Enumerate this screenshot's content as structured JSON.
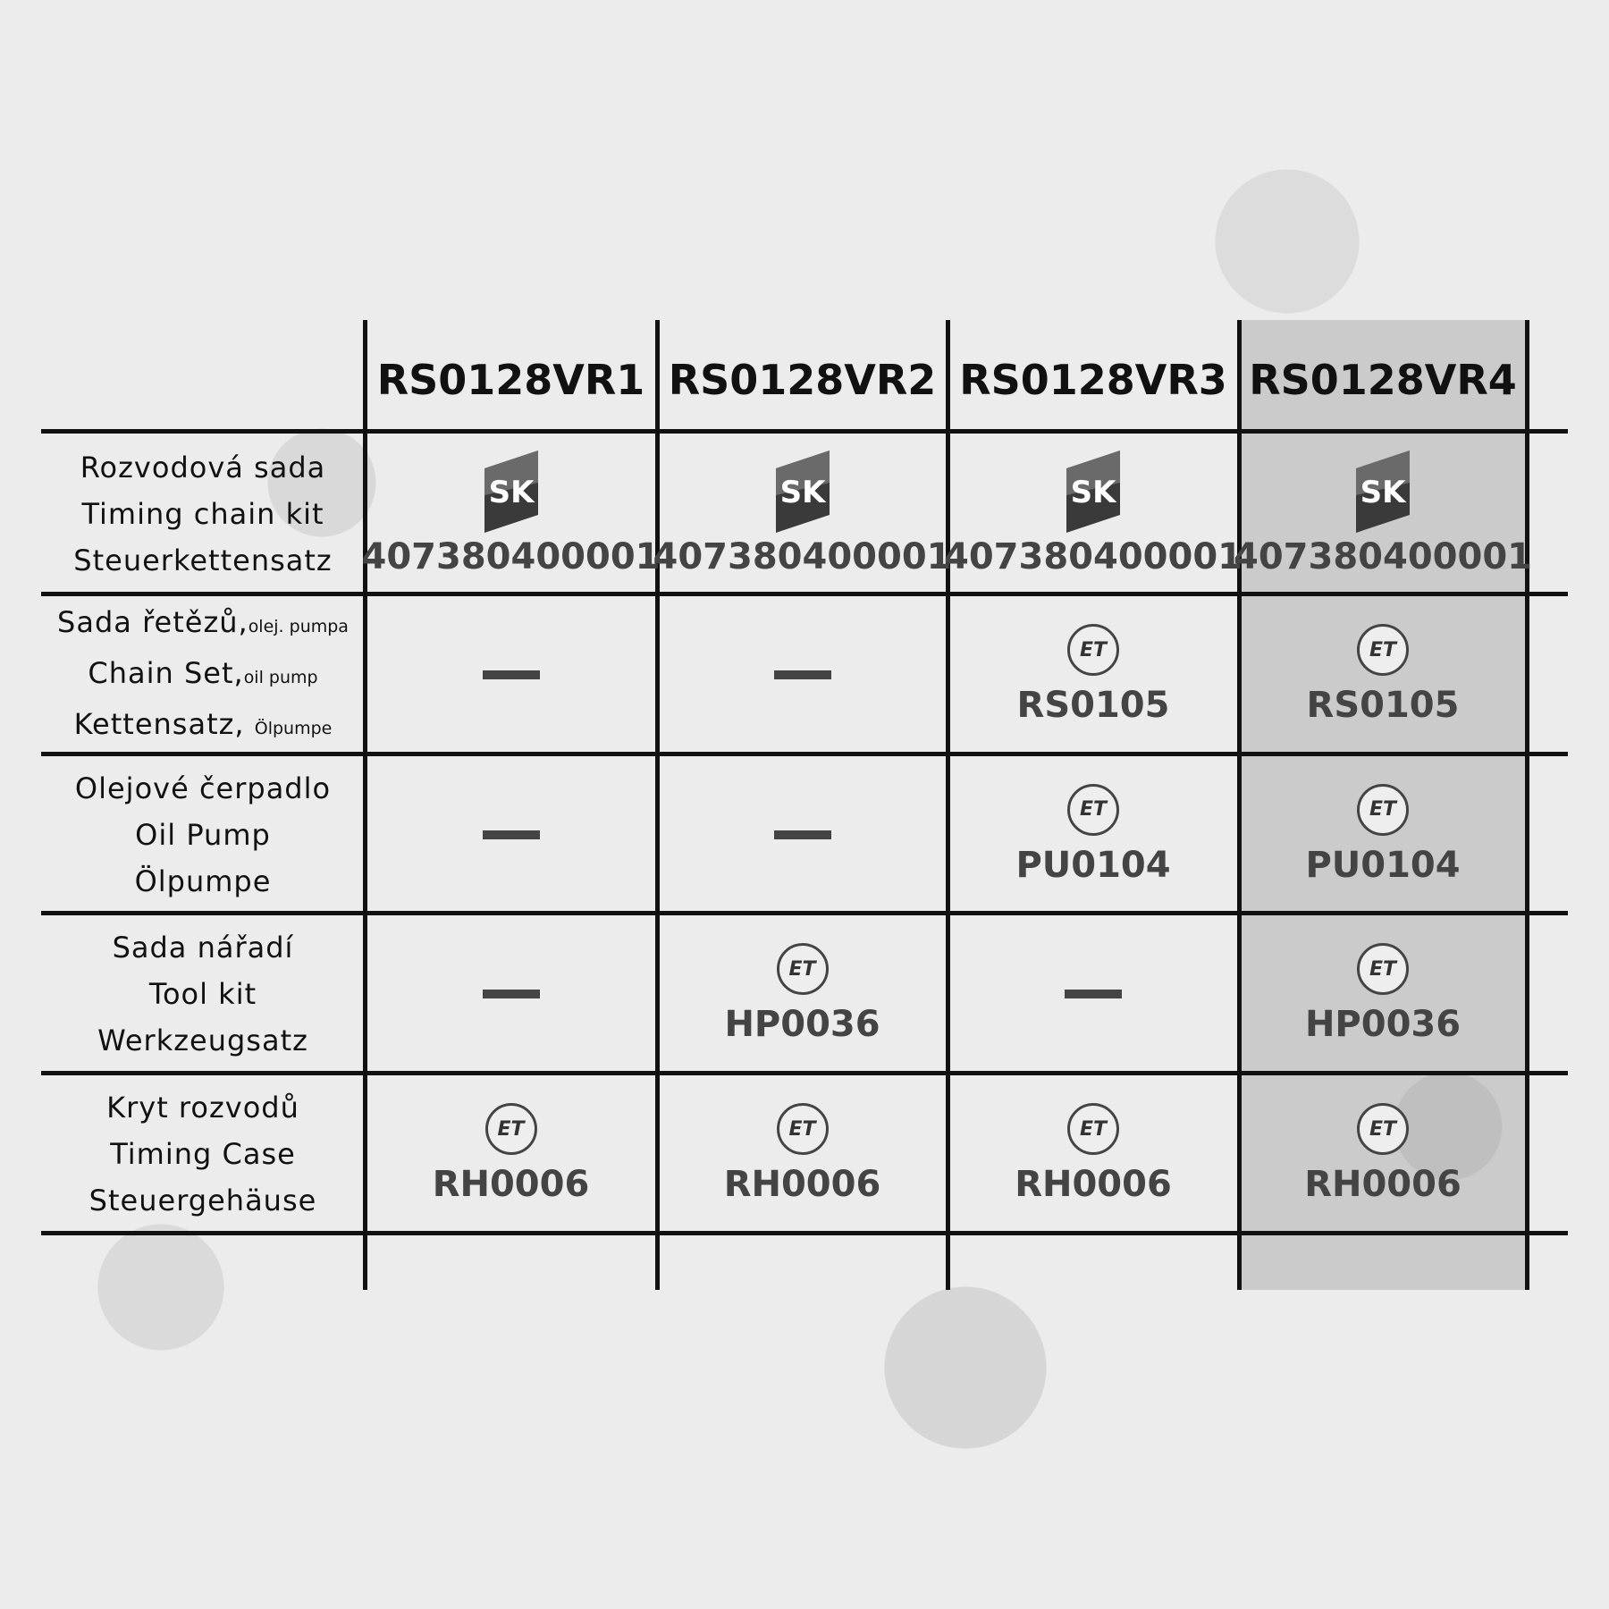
{
  "columns": [
    "RS0128VR1",
    "RS0128VR2",
    "RS0128VR3",
    "RS0128VR4"
  ],
  "highlight_color": "#9a9a9a",
  "rows": [
    {
      "lines": [
        {
          "main": "Rozvodová sada",
          "small": ""
        },
        {
          "main": "Timing chain kit",
          "small": ""
        },
        {
          "main": "Steuerkettensatz",
          "small": ""
        }
      ],
      "cells": [
        {
          "brand": "sk-logo",
          "code": "407380400001"
        },
        {
          "brand": "sk-logo",
          "code": "407380400001"
        },
        {
          "brand": "sk-logo",
          "code": "407380400001"
        },
        {
          "brand": "sk-logo",
          "code": "407380400001"
        }
      ]
    },
    {
      "lines": [
        {
          "main": "Sada řetězů,",
          "small": "olej. pumpa"
        },
        {
          "main": "Chain Set,",
          "small": "oil pump"
        },
        {
          "main": "Kettensatz, ",
          "small": "Ölpumpe"
        }
      ],
      "cells": [
        {
          "brand": "none",
          "code": ""
        },
        {
          "brand": "none",
          "code": ""
        },
        {
          "brand": "et-logo",
          "code": "RS0105"
        },
        {
          "brand": "et-logo",
          "code": "RS0105"
        }
      ]
    },
    {
      "lines": [
        {
          "main": "Olejové čerpadlo",
          "small": ""
        },
        {
          "main": "Oil Pump",
          "small": ""
        },
        {
          "main": "Ölpumpe",
          "small": ""
        }
      ],
      "cells": [
        {
          "brand": "none",
          "code": ""
        },
        {
          "brand": "none",
          "code": ""
        },
        {
          "brand": "et-logo",
          "code": "PU0104"
        },
        {
          "brand": "et-logo",
          "code": "PU0104"
        }
      ]
    },
    {
      "lines": [
        {
          "main": "Sada nářadí",
          "small": ""
        },
        {
          "main": "Tool kit",
          "small": ""
        },
        {
          "main": "Werkzeugsatz",
          "small": ""
        }
      ],
      "cells": [
        {
          "brand": "none",
          "code": ""
        },
        {
          "brand": "et-logo",
          "code": "HP0036"
        },
        {
          "brand": "none",
          "code": ""
        },
        {
          "brand": "et-logo",
          "code": "HP0036"
        }
      ]
    },
    {
      "lines": [
        {
          "main": "Kryt rozvodů",
          "small": ""
        },
        {
          "main": "Timing Case",
          "small": ""
        },
        {
          "main": "Steuergehäuse",
          "small": ""
        }
      ],
      "cells": [
        {
          "brand": "et-logo",
          "code": "RH0006"
        },
        {
          "brand": "et-logo",
          "code": "RH0006"
        },
        {
          "brand": "et-logo",
          "code": "RH0006"
        },
        {
          "brand": "et-logo",
          "code": "RH0006"
        }
      ]
    }
  ],
  "et_logo_text": "ET",
  "sk_logo_text": "SK"
}
